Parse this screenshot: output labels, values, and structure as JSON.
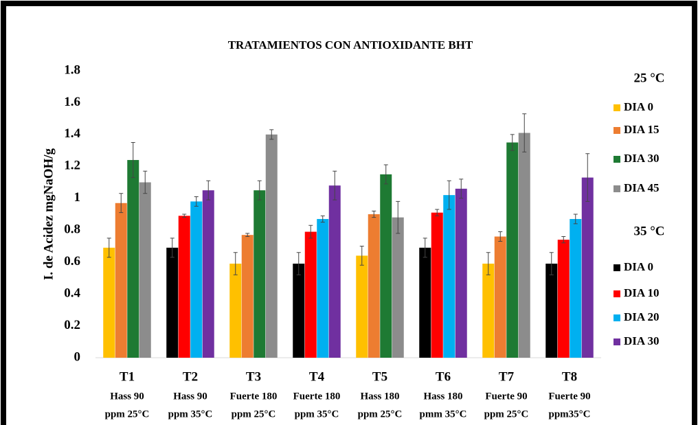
{
  "chart_data": {
    "type": "bar",
    "title": "TRATAMIENTOS CON ANTIOXIDANTE BHT",
    "y_label": "I. de  Acidez mgNaOH/g",
    "categories": [
      "T1",
      "T2",
      "T3",
      "T4",
      "T5",
      "T6",
      "T7",
      "T8"
    ],
    "category_notes": [
      [
        "Hass 90",
        "ppm 25°C"
      ],
      [
        "Hass 90",
        "ppm 35°C"
      ],
      [
        "Fuerte 180",
        "ppm 25°C"
      ],
      [
        "Fuerte 180",
        "ppm 35°C"
      ],
      [
        "Hass 180",
        "ppm 25°C"
      ],
      [
        "Hass 180",
        "pmm 35°C"
      ],
      [
        "Fuerte 90",
        "ppm 25°C"
      ],
      [
        "Fuerte 90",
        "ppm35°C"
      ]
    ],
    "ylim": [
      0,
      1.8
    ],
    "yticks": [
      0,
      0.2,
      0.4,
      0.6,
      0.8,
      1,
      1.2,
      1.4,
      1.6,
      1.8
    ],
    "legend_groups": [
      {
        "title": "25 °C"
      },
      {
        "title": "35 °C"
      }
    ],
    "series": [
      {
        "name": "DIA 0",
        "color": "#ffc000",
        "values": [
          0.69,
          null,
          0.59,
          null,
          0.64,
          null,
          0.59,
          null
        ],
        "errors": [
          0.06,
          null,
          0.07,
          null,
          0.06,
          null,
          0.07,
          null
        ]
      },
      {
        "name": "DIA 15",
        "color": "#ed7d31",
        "values": [
          0.97,
          null,
          0.77,
          null,
          0.9,
          null,
          0.76,
          null
        ],
        "errors": [
          0.06,
          null,
          0.01,
          null,
          0.02,
          null,
          0.03,
          null
        ]
      },
      {
        "name": "DIA 30",
        "color": "#1e7a33",
        "values": [
          1.24,
          null,
          1.05,
          null,
          1.15,
          null,
          1.35,
          null
        ],
        "errors": [
          0.11,
          null,
          0.06,
          null,
          0.06,
          null,
          0.05,
          null
        ]
      },
      {
        "name": "DIA 45",
        "color": "#8c8c8c",
        "values": [
          1.1,
          null,
          1.4,
          null,
          0.88,
          null,
          1.41,
          null
        ],
        "errors": [
          0.07,
          null,
          0.03,
          null,
          0.1,
          null,
          0.12,
          null
        ]
      },
      {
        "name": "DIA 0",
        "color": "#000000",
        "values": [
          null,
          0.69,
          null,
          0.59,
          null,
          0.69,
          null,
          0.59
        ],
        "errors": [
          null,
          0.06,
          null,
          0.07,
          null,
          0.06,
          null,
          0.07
        ]
      },
      {
        "name": "DIA 10",
        "color": "#ff0000",
        "values": [
          null,
          0.89,
          null,
          0.79,
          null,
          0.91,
          null,
          0.74
        ],
        "errors": [
          null,
          0.01,
          null,
          0.04,
          null,
          0.02,
          null,
          0.02
        ]
      },
      {
        "name": "DIA 20",
        "color": "#00b0f0",
        "values": [
          null,
          0.98,
          null,
          0.87,
          null,
          1.02,
          null,
          0.87
        ],
        "errors": [
          null,
          0.03,
          null,
          0.02,
          null,
          0.09,
          null,
          0.03
        ]
      },
      {
        "name": "DIA 30",
        "color": "#7030a0",
        "values": [
          null,
          1.05,
          null,
          1.08,
          null,
          1.06,
          null,
          1.13
        ],
        "errors": [
          null,
          0.06,
          null,
          0.09,
          null,
          0.06,
          null,
          0.15
        ]
      }
    ]
  }
}
